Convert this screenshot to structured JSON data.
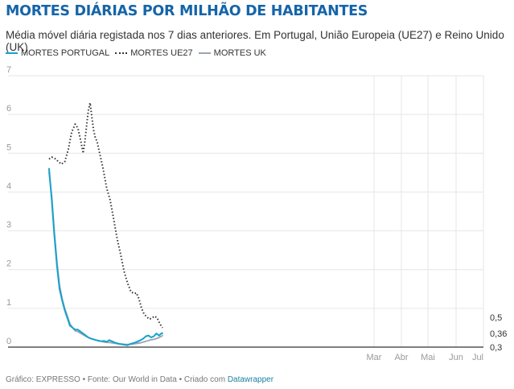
{
  "header": {
    "title": "MORTES DIÁRIAS POR MILHÃO DE HABITANTES",
    "subtitle": "Média móvel diária registada nos 7 dias anteriores. Em Portugal, União Europeia (UE27) e Reino Unido (UK)"
  },
  "legend": [
    {
      "label": "MORTES PORTUGAL",
      "color": "#18a1cd",
      "style": "solid"
    },
    {
      "label": "MORTES UE27",
      "color": "#333333",
      "style": "dotted"
    },
    {
      "label": "MORTES UK",
      "color": "#9aa5b1",
      "style": "solid"
    }
  ],
  "footer": {
    "prefix": "Gráfico: EXPRESSO • Fonte: Our World in Data • Criado com ",
    "link": "Datawrapper"
  },
  "chart_data": {
    "type": "line",
    "title": "MORTES DIÁRIAS POR MILHÃO DE HABITANTES",
    "xlabel": "",
    "ylabel": "",
    "ylim": [
      0,
      7
    ],
    "yticks": [
      "0",
      "1",
      "2",
      "3",
      "4",
      "5",
      "6",
      "7"
    ],
    "x_month_ticks": [
      "Mar",
      "Abr",
      "Mai",
      "Jun",
      "Jul"
    ],
    "x_note": "x = day index from start of series; series span ~128 days ending before the labeled months",
    "xlim_days": [
      -47,
      500
    ],
    "month_tick_days": [
      373,
      404,
      434,
      465,
      496
    ],
    "grid": true,
    "end_labels": [
      "0,5",
      "0,36",
      "0,3"
    ],
    "series": [
      {
        "name": "MORTES UE27",
        "color": "#333333",
        "style": "dotted",
        "x": [
          0,
          3,
          6,
          10,
          14,
          18,
          22,
          26,
          30,
          33,
          35,
          37,
          39,
          41,
          43,
          45,
          47,
          49,
          51,
          53,
          55,
          58,
          62,
          66,
          70,
          74,
          78,
          82,
          86,
          90,
          94,
          98,
          100,
          103,
          106,
          109,
          112,
          115,
          118,
          121,
          124,
          127,
          130
        ],
        "values": [
          4.85,
          4.9,
          4.88,
          4.8,
          4.72,
          4.78,
          5.1,
          5.55,
          5.75,
          5.65,
          5.45,
          5.25,
          5.0,
          5.3,
          5.7,
          6.1,
          6.3,
          5.95,
          5.6,
          5.4,
          5.3,
          5.0,
          4.6,
          4.1,
          3.8,
          3.3,
          2.8,
          2.4,
          1.95,
          1.65,
          1.42,
          1.38,
          1.4,
          1.25,
          1.0,
          0.85,
          0.78,
          0.72,
          0.75,
          0.8,
          0.75,
          0.6,
          0.5
        ]
      },
      {
        "name": "MORTES PORTUGAL",
        "color": "#18a1cd",
        "style": "solid",
        "x": [
          0,
          3,
          6,
          9,
          12,
          15,
          18,
          21,
          24,
          27,
          30,
          33,
          36,
          39,
          42,
          45,
          48,
          51,
          54,
          57,
          60,
          63,
          66,
          69,
          72,
          75,
          78,
          81,
          84,
          87,
          90,
          93,
          96,
          99,
          102,
          105,
          108,
          111,
          114,
          117,
          120,
          123,
          126,
          129,
          130
        ],
        "values": [
          4.6,
          3.8,
          2.9,
          2.1,
          1.5,
          1.2,
          0.95,
          0.75,
          0.55,
          0.5,
          0.45,
          0.45,
          0.4,
          0.35,
          0.3,
          0.25,
          0.22,
          0.2,
          0.18,
          0.16,
          0.15,
          0.16,
          0.14,
          0.18,
          0.15,
          0.12,
          0.1,
          0.08,
          0.07,
          0.06,
          0.05,
          0.08,
          0.1,
          0.12,
          0.15,
          0.18,
          0.22,
          0.28,
          0.3,
          0.25,
          0.28,
          0.35,
          0.3,
          0.36,
          0.36
        ]
      },
      {
        "name": "MORTES UK",
        "color": "#9aa5b1",
        "style": "solid",
        "x": [
          0,
          3,
          6,
          9,
          12,
          15,
          18,
          21,
          24,
          27,
          30,
          33,
          36,
          39,
          42,
          45,
          48,
          51,
          54,
          57,
          60,
          63,
          66,
          69,
          72,
          75,
          78,
          81,
          84,
          87,
          90,
          93,
          96,
          99,
          102,
          105,
          108,
          111,
          114,
          117,
          120,
          123,
          126,
          129,
          130
        ],
        "values": [
          4.5,
          3.9,
          3.0,
          2.2,
          1.6,
          1.25,
          1.0,
          0.8,
          0.6,
          0.5,
          0.42,
          0.4,
          0.36,
          0.32,
          0.28,
          0.25,
          0.22,
          0.2,
          0.18,
          0.17,
          0.15,
          0.13,
          0.12,
          0.12,
          0.11,
          0.1,
          0.09,
          0.08,
          0.08,
          0.07,
          0.07,
          0.07,
          0.08,
          0.09,
          0.1,
          0.11,
          0.13,
          0.15,
          0.17,
          0.19,
          0.2,
          0.22,
          0.25,
          0.28,
          0.3
        ]
      }
    ]
  }
}
